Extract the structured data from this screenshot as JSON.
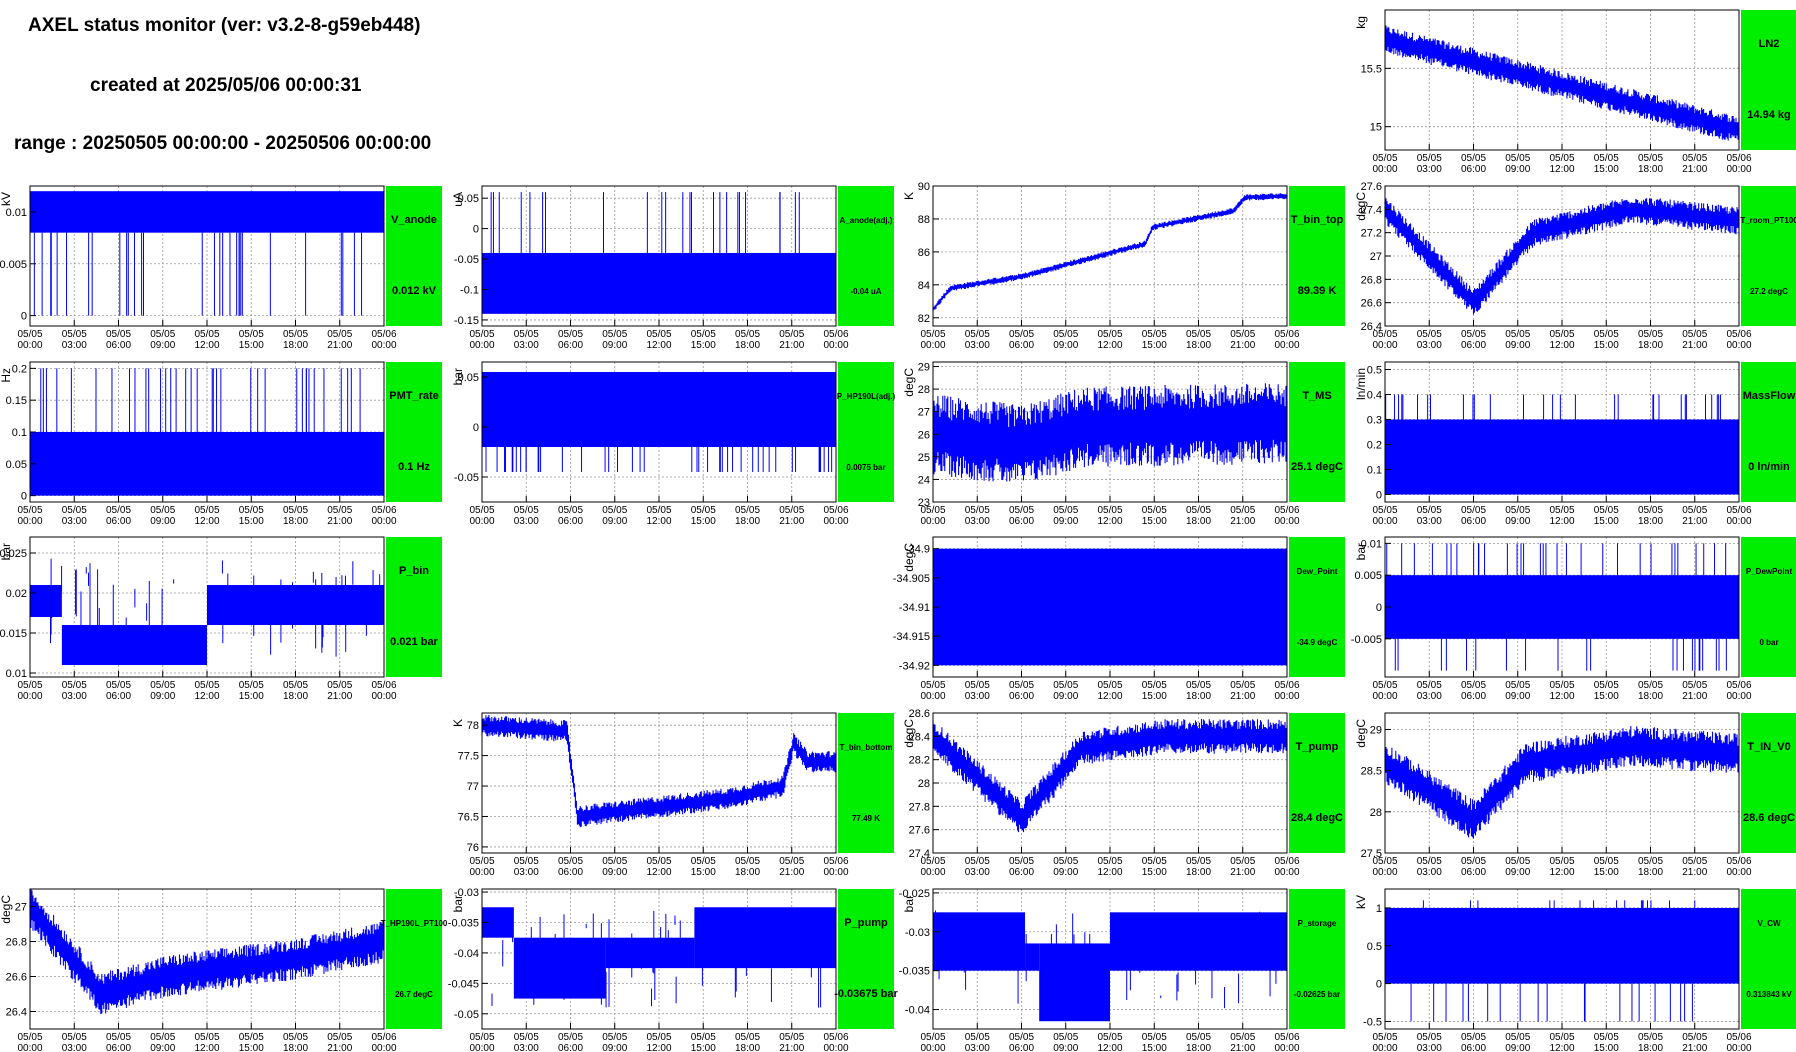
{
  "header": {
    "title": "AXEL status monitor (ver: v3.2-8-g59eb448)",
    "created": "created at 2025/05/06 00:00:31",
    "range": "range : 20250505 00:00:00 - 20250506 00:00:00"
  },
  "colors": {
    "trace": "#0000ff",
    "status_ok": "#00ee00",
    "grid": "#999999",
    "frame": "#000000"
  },
  "x_tick_labels": [
    [
      "05/05",
      "00:00"
    ],
    [
      "05/05",
      "03:00"
    ],
    [
      "05/05",
      "06:00"
    ],
    [
      "05/05",
      "09:00"
    ],
    [
      "05/05",
      "12:00"
    ],
    [
      "05/05",
      "15:00"
    ],
    [
      "05/05",
      "18:00"
    ],
    [
      "05/05",
      "21:00"
    ],
    [
      "05/06",
      "00:00"
    ]
  ],
  "chart_data": [
    {
      "type": "line",
      "id": "LN2",
      "title": "LN2",
      "value_label": "14.94 kg",
      "ylabel": "kg",
      "x": "05/05 00:00 - 05/06 00:00",
      "ylim": [
        14.8,
        16.0
      ],
      "yticks": [
        "15",
        "15.5"
      ],
      "shape": "ramp",
      "params": [
        15.75,
        14.97
      ],
      "noise": 0.12
    },
    {
      "type": "line",
      "id": "V_anode",
      "title": "V_anode",
      "value_label": "0.012 kV",
      "ylabel": "kV",
      "x": "05/05 00:00 - 05/06 00:00",
      "ylim": [
        -0.001,
        0.0125
      ],
      "yticks": [
        "0",
        "0.005",
        "0.01"
      ],
      "shape": "band",
      "band": [
        0.008,
        0.012
      ],
      "spike_dir": "down",
      "spikes": 0.1,
      "spike_lo": 0.0
    },
    {
      "type": "line",
      "id": "A_anode_adj",
      "title": "A_anode(adj.)",
      "value_label": "-0.04 uA",
      "ylabel": "uA",
      "x": "05/05 00:00 - 05/06 00:00",
      "ylim": [
        -0.16,
        0.07
      ],
      "yticks": [
        "-0.15",
        "-0.1",
        "-0.05",
        "0",
        "0.05"
      ],
      "shape": "band",
      "band": [
        -0.14,
        -0.04
      ],
      "spike_dir": "up",
      "spikes": 0.08,
      "spike_hi": 0.06
    },
    {
      "type": "line",
      "id": "T_bin_top",
      "title": "T_bin_top",
      "value_label": "89.39 K",
      "ylabel": "K",
      "x": "05/05 00:00 - 05/06 00:00",
      "ylim": [
        81.5,
        90
      ],
      "yticks": [
        "82",
        "84",
        "86",
        "88",
        "90"
      ],
      "shape": "path",
      "params": [
        [
          0,
          82.5
        ],
        [
          0.05,
          83.8
        ],
        [
          0.25,
          84.5
        ],
        [
          0.6,
          86.5
        ],
        [
          0.62,
          87.5
        ],
        [
          0.85,
          88.5
        ],
        [
          0.88,
          89.3
        ],
        [
          1,
          89.4
        ]
      ],
      "noise": 0.2
    },
    {
      "type": "line",
      "id": "T_room_PT100",
      "title": "T_room_PT100",
      "value_label": "27.2 degC",
      "ylabel": "degC",
      "x": "05/05 00:00 - 05/06 00:00",
      "ylim": [
        26.4,
        27.6
      ],
      "yticks": [
        "26.4",
        "26.6",
        "26.8",
        "27",
        "27.2",
        "27.4",
        "27.6"
      ],
      "shape": "path",
      "params": [
        [
          0,
          27.4
        ],
        [
          0.25,
          26.6
        ],
        [
          0.42,
          27.2
        ],
        [
          0.7,
          27.4
        ],
        [
          1,
          27.3
        ]
      ],
      "noise": 0.12
    },
    {
      "type": "line",
      "id": "PMT_rate",
      "title": "PMT_rate",
      "value_label": "0.1 Hz",
      "ylabel": "Hz",
      "x": "05/05 00:00 - 05/06 00:00",
      "ylim": [
        -0.01,
        0.21
      ],
      "yticks": [
        "0",
        "0.05",
        "0.1",
        "0.15",
        "0.2"
      ],
      "shape": "band",
      "band": [
        0.0,
        0.1
      ],
      "spike_dir": "up",
      "spikes": 0.12,
      "spike_hi": 0.2
    },
    {
      "type": "line",
      "id": "P_HP190L_adj",
      "title": "P_HP190L(adj.)",
      "value_label": "0.0075 bar",
      "ylabel": "bar",
      "x": "05/05 00:00 - 05/06 00:00",
      "ylim": [
        -0.075,
        0.065
      ],
      "yticks": [
        "-0.05",
        "0",
        "0.05"
      ],
      "shape": "band",
      "band": [
        -0.02,
        0.055
      ],
      "spike_dir": "down",
      "spikes": 0.15,
      "spike_lo": -0.045
    },
    {
      "type": "line",
      "id": "T_MS",
      "title": "T_MS",
      "value_label": "25.1 degC",
      "ylabel": "degC",
      "x": "05/05 00:00 - 05/06 00:00",
      "ylim": [
        23,
        29.2
      ],
      "yticks": [
        "23",
        "24",
        "25",
        "26",
        "27",
        "28",
        "29"
      ],
      "shape": "path",
      "params": [
        [
          0,
          26.0
        ],
        [
          0.25,
          25.5
        ],
        [
          0.42,
          26.3
        ],
        [
          1,
          26.5
        ]
      ],
      "noise": 1.8
    },
    {
      "type": "line",
      "id": "MassFlow",
      "title": "MassFlow",
      "value_label": "0 ln/min",
      "ylabel": "ln/min",
      "x": "05/05 00:00 - 05/06 00:00",
      "ylim": [
        -0.03,
        0.53
      ],
      "yticks": [
        "0",
        "0.1",
        "0.2",
        "0.3",
        "0.4",
        "0.5"
      ],
      "shape": "band",
      "band": [
        0.0,
        0.3
      ],
      "spike_dir": "up",
      "spikes": 0.1,
      "spike_hi": 0.4
    },
    {
      "type": "line",
      "id": "P_bin",
      "title": "P_bin",
      "value_label": "0.021 bar",
      "ylabel": "bar",
      "x": "05/05 00:00 - 05/06 00:00",
      "ylim": [
        0.0095,
        0.027
      ],
      "yticks": [
        "0.01",
        "0.015",
        "0.02",
        "0.025"
      ],
      "shape": "steps",
      "params": [
        [
          0,
          0.017,
          0.021
        ],
        [
          0.09,
          0.011,
          0.016
        ],
        [
          0.5,
          0.016,
          0.021
        ]
      ]
    },
    {
      "type": "line",
      "id": "Dew_Point",
      "title": "Dew_Point",
      "value_label": "-34.9 degC",
      "ylabel": "degC",
      "x": "05/05 00:00 - 05/06 00:00",
      "ylim": [
        -34.922,
        -34.898
      ],
      "yticks": [
        "-34.9",
        "-34.905",
        "-34.91",
        "-34.915",
        "-34.92"
      ],
      "shape": "band",
      "band": [
        -34.92,
        -34.9
      ],
      "spikes": 0
    },
    {
      "type": "line",
      "id": "P_DewPoint",
      "title": "P_DewPoint",
      "value_label": "0 bar",
      "ylabel": "bar",
      "x": "05/05 00:00 - 05/06 00:00",
      "ylim": [
        -0.011,
        0.011
      ],
      "yticks": [
        "-0.005",
        "0",
        "0.005",
        "0.01"
      ],
      "shape": "band",
      "band": [
        -0.005,
        0.005
      ],
      "spike_dir": "both",
      "spikes": 0.18,
      "spike_hi": 0.01,
      "spike_lo": -0.01
    },
    {
      "type": "line",
      "id": "T_bin_bottom",
      "title": "T_bin_bottom",
      "value_label": "77.49 K",
      "ylabel": "K",
      "x": "05/05 00:00 - 05/06 00:00",
      "ylim": [
        75.9,
        78.2
      ],
      "yticks": [
        "76",
        "76.5",
        "77",
        "77.5",
        "78"
      ],
      "shape": "path",
      "params": [
        [
          0,
          78.0
        ],
        [
          0.24,
          77.9
        ],
        [
          0.27,
          76.5
        ],
        [
          0.7,
          76.8
        ],
        [
          0.85,
          77.0
        ],
        [
          0.88,
          77.7
        ],
        [
          0.92,
          77.4
        ],
        [
          1,
          77.4
        ]
      ],
      "noise": 0.18
    },
    {
      "type": "line",
      "id": "T_pump",
      "title": "T_pump",
      "value_label": "28.4 degC",
      "ylabel": "degC",
      "x": "05/05 00:00 - 05/06 00:00",
      "ylim": [
        27.4,
        28.6
      ],
      "yticks": [
        "27.4",
        "27.6",
        "27.8",
        "28",
        "28.2",
        "28.4",
        "28.6"
      ],
      "shape": "path",
      "params": [
        [
          0,
          28.4
        ],
        [
          0.25,
          27.7
        ],
        [
          0.42,
          28.3
        ],
        [
          0.65,
          28.4
        ],
        [
          1,
          28.4
        ]
      ],
      "noise": 0.15
    },
    {
      "type": "line",
      "id": "T_IN_V0",
      "title": "T_IN_V0",
      "value_label": "28.6 degC",
      "ylabel": "degC",
      "x": "05/05 00:00 - 05/06 00:00",
      "ylim": [
        27.5,
        29.2
      ],
      "yticks": [
        "27.5",
        "28",
        "28.5",
        "29"
      ],
      "shape": "path",
      "params": [
        [
          0,
          28.6
        ],
        [
          0.25,
          27.9
        ],
        [
          0.4,
          28.6
        ],
        [
          0.7,
          28.8
        ],
        [
          1,
          28.7
        ]
      ],
      "noise": 0.25
    },
    {
      "type": "line",
      "id": "T_HP190L_PT100",
      "title": "T_HP190L_PT100",
      "value_label": "26.7 degC",
      "ylabel": "degC",
      "x": "05/05 00:00 - 05/06 00:00",
      "ylim": [
        26.3,
        27.1
      ],
      "yticks": [
        "26.4",
        "26.6",
        "26.8",
        "27"
      ],
      "shape": "path",
      "params": [
        [
          0,
          27.0
        ],
        [
          0.2,
          26.5
        ],
        [
          0.38,
          26.6
        ],
        [
          0.75,
          26.7
        ],
        [
          1,
          26.8
        ]
      ],
      "noise": 0.12
    },
    {
      "type": "line",
      "id": "P_pump",
      "title": "P_pump",
      "value_label": "-0.03675 bar",
      "ylabel": "bar",
      "x": "05/05 00:00 - 05/06 00:00",
      "ylim": [
        -0.0525,
        -0.0295
      ],
      "yticks": [
        "-0.03",
        "-0.035",
        "-0.04",
        "-0.045",
        "-0.05"
      ],
      "shape": "steps",
      "params": [
        [
          0,
          -0.0375,
          -0.0325
        ],
        [
          0.09,
          -0.0475,
          -0.0375
        ],
        [
          0.35,
          -0.0425,
          -0.0375
        ],
        [
          0.6,
          -0.0425,
          -0.0325
        ]
      ]
    },
    {
      "type": "line",
      "id": "P_storage",
      "title": "P_storage",
      "value_label": "-0.02625 bar",
      "ylabel": "bar",
      "x": "05/05 00:00 - 05/06 00:00",
      "ylim": [
        -0.0425,
        -0.0245
      ],
      "yticks": [
        "-0.025",
        "-0.03",
        "-0.035",
        "-0.04"
      ],
      "shape": "steps",
      "params": [
        [
          0,
          -0.035,
          -0.0275
        ],
        [
          0.26,
          -0.035,
          -0.0315
        ],
        [
          0.3,
          -0.0415,
          -0.0315
        ],
        [
          0.5,
          -0.035,
          -0.0315
        ],
        [
          0.5,
          -0.035,
          -0.0275
        ]
      ]
    },
    {
      "type": "line",
      "id": "V_CW",
      "title": "V_CW",
      "value_label": "0.313843 kV",
      "ylabel": "kV",
      "x": "05/05 00:00 - 05/06 00:00",
      "ylim": [
        -0.6,
        1.25
      ],
      "yticks": [
        "-0.5",
        "0",
        "0.5",
        "1"
      ],
      "shape": "band",
      "band": [
        0.0,
        1.0
      ],
      "spike_dir": "both",
      "spikes": 0.12,
      "spike_hi": 1.1,
      "spike_lo": -0.5
    }
  ]
}
